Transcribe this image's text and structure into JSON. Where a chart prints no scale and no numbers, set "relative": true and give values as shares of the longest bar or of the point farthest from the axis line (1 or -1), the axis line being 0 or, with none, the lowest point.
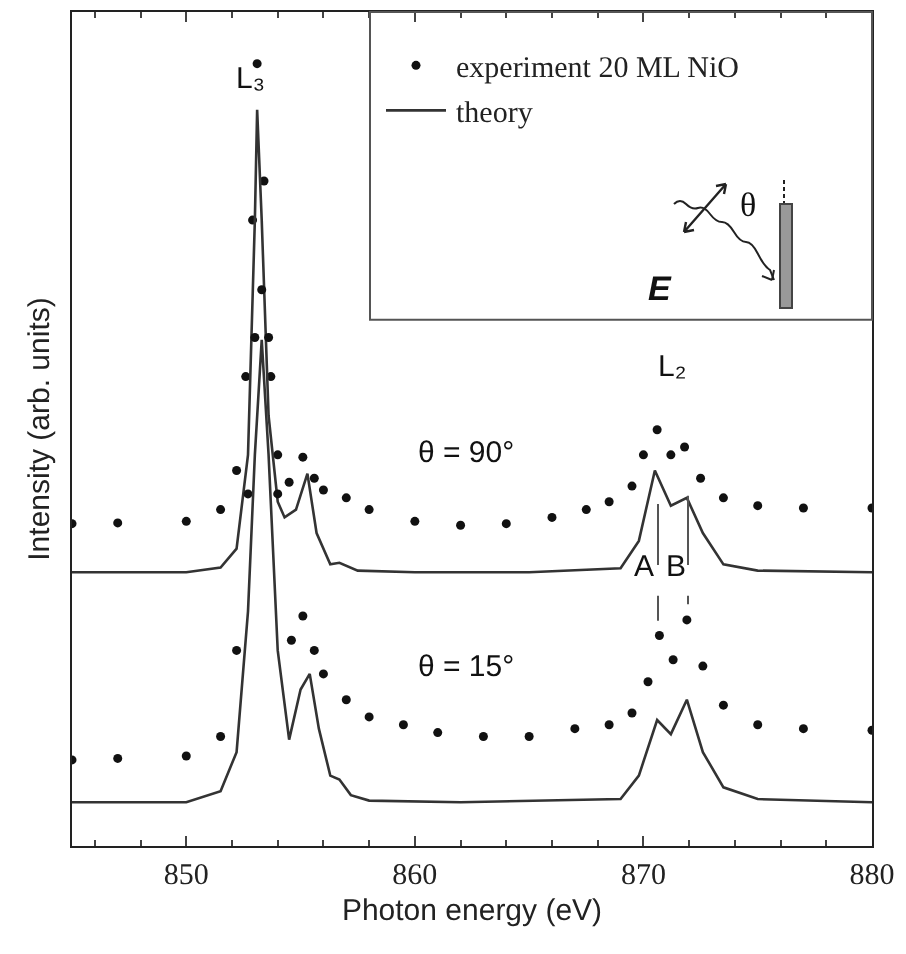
{
  "chart_data": {
    "type": "line",
    "relative": true,
    "xlabel": "Photon energy (eV)",
    "ylabel": "Intensity (arb. units)",
    "xlim": [
      845,
      880
    ],
    "xticks": [
      850,
      860,
      870,
      880
    ],
    "tick_labels": "x",
    "legend": "top right",
    "line_style": "solid",
    "grid": false,
    "annotations": [
      "L₃",
      "L₂",
      "θ = 90°",
      "θ = 15°",
      "A",
      "B",
      "θ",
      "E"
    ],
    "series": [
      {
        "name": "experiment 20 ML NiO",
        "type": "scatter",
        "marker": "circle",
        "color": "#111111",
        "x": [
          845,
          847,
          850,
          851.5,
          852.2,
          852.6,
          852.9,
          853.1,
          853.4,
          853.7,
          854,
          854.5,
          855.1,
          855.6,
          856,
          857,
          858,
          860,
          862,
          864,
          866,
          867.5,
          868.5,
          869.5,
          870,
          870.6,
          871.2,
          871.8,
          872.5,
          873.5,
          875,
          877,
          880
        ],
        "values": [
          0.412,
          0.413,
          0.415,
          0.43,
          0.48,
          0.6,
          0.8,
          1.0,
          0.85,
          0.6,
          0.5,
          0.465,
          0.497,
          0.47,
          0.455,
          0.445,
          0.43,
          0.415,
          0.41,
          0.412,
          0.42,
          0.43,
          0.44,
          0.46,
          0.5,
          0.532,
          0.5,
          0.51,
          0.47,
          0.445,
          0.435,
          0.432,
          0.432
        ]
      },
      {
        "name": "theory",
        "type": "line",
        "marker": "none",
        "color": "#333333",
        "x": [
          845,
          848,
          850,
          851.5,
          852.2,
          852.7,
          853,
          853.1,
          853.3,
          853.6,
          854,
          854.3,
          854.8,
          855.3,
          855.7,
          856.3,
          856.7,
          857.5,
          860,
          865,
          869,
          869.8,
          870.5,
          871.2,
          871.9,
          872.6,
          873.5,
          875,
          880
        ],
        "values": [
          0.35,
          0.35,
          0.35,
          0.356,
          0.38,
          0.5,
          0.8,
          0.941,
          0.8,
          0.55,
          0.44,
          0.42,
          0.43,
          0.476,
          0.4,
          0.36,
          0.362,
          0.352,
          0.35,
          0.35,
          0.355,
          0.39,
          0.48,
          0.435,
          0.445,
          0.4,
          0.36,
          0.352,
          0.35
        ]
      },
      {
        "type": "scatter",
        "marker": "circle",
        "color": "#111111",
        "x": [
          845,
          847,
          850,
          851.5,
          852.2,
          852.7,
          853,
          853.3,
          853.6,
          854,
          854.6,
          855.1,
          855.6,
          856,
          857,
          858,
          859.5,
          861,
          863,
          865,
          867,
          868.5,
          869.5,
          870.2,
          870.7,
          871.3,
          871.9,
          872.6,
          873.5,
          875,
          877,
          880
        ],
        "values": [
          0.11,
          0.112,
          0.115,
          0.14,
          0.25,
          0.45,
          0.65,
          0.711,
          0.65,
          0.45,
          0.263,
          0.294,
          0.25,
          0.22,
          0.187,
          0.165,
          0.155,
          0.145,
          0.14,
          0.14,
          0.15,
          0.155,
          0.17,
          0.21,
          0.269,
          0.238,
          0.289,
          0.23,
          0.18,
          0.155,
          0.15,
          0.148
        ]
      },
      {
        "type": "line",
        "marker": "none",
        "color": "#333333",
        "x": [
          845,
          848,
          850,
          851.5,
          852.2,
          852.7,
          853,
          853.3,
          853.6,
          854,
          854.5,
          855,
          855.4,
          855.8,
          856.3,
          856.7,
          857.2,
          858,
          862,
          869,
          869.8,
          870.6,
          871.2,
          871.9,
          872.6,
          873.5,
          875,
          880
        ],
        "values": [
          0.056,
          0.056,
          0.056,
          0.07,
          0.12,
          0.3,
          0.5,
          0.647,
          0.5,
          0.25,
          0.136,
          0.2,
          0.22,
          0.15,
          0.09,
          0.085,
          0.065,
          0.058,
          0.056,
          0.06,
          0.09,
          0.161,
          0.143,
          0.187,
          0.12,
          0.075,
          0.06,
          0.056
        ]
      }
    ]
  }
}
